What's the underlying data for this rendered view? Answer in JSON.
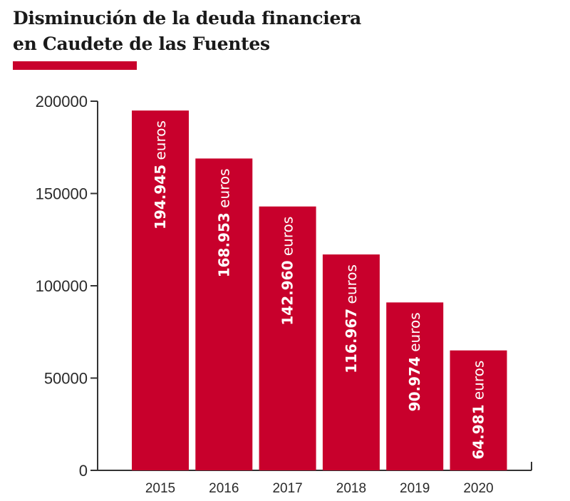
{
  "title_lines": [
    "Disminución de la deuda financiera",
    "en Caudete de las Fuentes"
  ],
  "colors": {
    "accent": "#c8002c",
    "axis": "#333333",
    "text": "#1a1a1a"
  },
  "chart_data": {
    "type": "bar",
    "title": "Disminución de la deuda financiera en Caudete de las Fuentes",
    "categories": [
      "2015",
      "2016",
      "2017",
      "2018",
      "2019",
      "2020"
    ],
    "values": [
      194945,
      168953,
      142960,
      116967,
      90974,
      64981
    ],
    "value_labels": [
      "194.945",
      "168.953",
      "142.960",
      "116.967",
      "90.974",
      "64.981"
    ],
    "value_unit": "euros",
    "yticks": [
      "0",
      "50000",
      "100000",
      "150000",
      "200000"
    ],
    "ylim": [
      0,
      200000
    ],
    "xlabel": "",
    "ylabel": "",
    "grid": false,
    "legend": "none"
  }
}
